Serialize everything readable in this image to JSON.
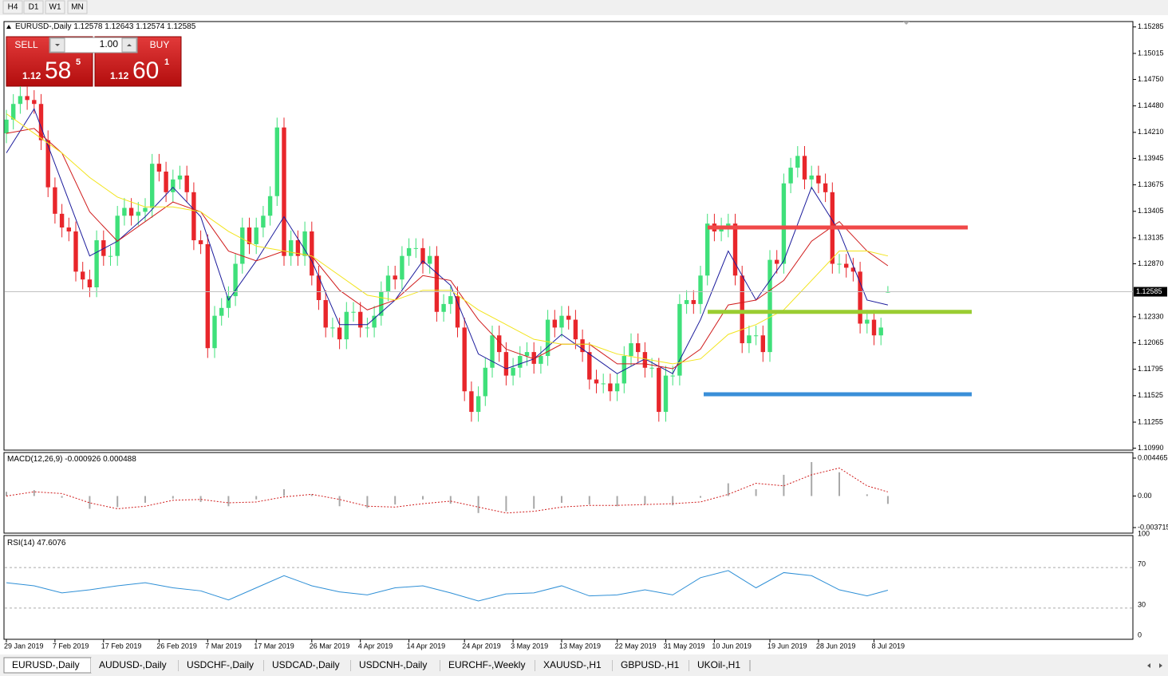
{
  "toolbar": {
    "timeframes": [
      "H4",
      "D1",
      "W1",
      "MN"
    ]
  },
  "trade_panel": {
    "sell_label": "SELL",
    "buy_label": "BUY",
    "lot": "1.00",
    "sell_price": {
      "prefix": "1.12",
      "big": "58",
      "small": "5"
    },
    "buy_price": {
      "prefix": "1.12",
      "big": "60",
      "small": "1"
    }
  },
  "chart_data": [
    {
      "type": "candlestick",
      "symbol": "EURUSD-,Daily",
      "categories": [
        "29 Jan 2019",
        null,
        null,
        null,
        null,
        null,
        null,
        "7 Feb 2019",
        null,
        null,
        null,
        null,
        null,
        null,
        "17 Feb 2019",
        null,
        null,
        null,
        null,
        null,
        null,
        null,
        "26 Feb 2019",
        null,
        null,
        null,
        null,
        null,
        null,
        "7 Mar 2019",
        null,
        null,
        null,
        null,
        null,
        null,
        "17 Mar 2019",
        null,
        null,
        null,
        null,
        null,
        null,
        null,
        "26 Mar 2019",
        null,
        null,
        null,
        null,
        null,
        null,
        "4 Apr 2019",
        null,
        null,
        null,
        null,
        null,
        null,
        "14 Apr 2019",
        null,
        null,
        null,
        null,
        null,
        null,
        null,
        "24 Apr 2019",
        null,
        null,
        null,
        null,
        null,
        null,
        "3 May 2019",
        null,
        null,
        null,
        null,
        null,
        null,
        "13 May 2019",
        null,
        null,
        null,
        null,
        null,
        null,
        null,
        "22 May 2019",
        null,
        null,
        null,
        null,
        null,
        null,
        "31 May 2019",
        null,
        null,
        null,
        null,
        null,
        null,
        "10 Jun 2019",
        null,
        null,
        null,
        null,
        null,
        null,
        null,
        "19 Jun 2019",
        null,
        null,
        null,
        null,
        null,
        null,
        "28 Jun 2019",
        null,
        null,
        null,
        null,
        null,
        null,
        null,
        "8 Jul 2019",
        null,
        null
      ],
      "open": [
        1.142,
        1.1434,
        1.145,
        1.1458,
        1.1454,
        1.145,
        1.1413,
        1.1365,
        1.1338,
        1.1324,
        1.132,
        1.1279,
        1.1271,
        1.1263,
        1.1311,
        1.1295,
        1.1295,
        1.1336,
        1.1344,
        1.1336,
        1.134,
        1.1344,
        1.1389,
        1.1381,
        1.136,
        1.1373,
        1.1377,
        1.136,
        1.1311,
        1.1307,
        1.1201,
        1.1234,
        1.1242,
        1.1254,
        1.1287,
        1.1324,
        1.1307,
        1.1324,
        1.1336,
        1.1356,
        1.1426,
        1.1295,
        1.1311,
        1.1295,
        1.132,
        1.1275,
        1.125,
        1.1222,
        1.1222,
        1.121,
        1.1238,
        1.1238,
        1.1222,
        1.1222,
        1.1234,
        1.1259,
        1.1275,
        1.1271,
        1.1295,
        1.1303,
        1.1303,
        1.1287,
        1.1295,
        1.1238,
        1.1246,
        1.1254,
        1.1222,
        1.1157,
        1.1136,
        1.1152,
        1.1181,
        1.1214,
        1.1197,
        1.1173,
        1.1181,
        1.1193,
        1.1197,
        1.1185,
        1.1193,
        1.123,
        1.1222,
        1.1234,
        1.123,
        1.121,
        1.1197,
        1.1169,
        1.1165,
        1.1165,
        1.1157,
        1.1165,
        1.1193,
        1.1206,
        1.1197,
        1.1181,
        1.1181,
        1.1136,
        1.1173,
        1.1173,
        1.1246,
        1.125,
        1.1246,
        1.1275,
        1.1328,
        1.132,
        1.1324,
        1.1328,
        1.1275,
        1.1206,
        1.1214,
        1.1214,
        1.1197,
        1.1291,
        1.1287,
        1.1369,
        1.1385,
        1.1397,
        1.1373,
        1.1377,
        1.1369,
        1.136,
        1.1287,
        1.1287,
        1.1283,
        1.1279,
        1.1226,
        1.123,
        1.1214,
        1.12578
      ],
      "high": [
        1.1444,
        1.146,
        1.1468,
        1.1468,
        1.1464,
        1.146,
        1.1423,
        1.1375,
        1.1348,
        1.1334,
        1.133,
        1.1289,
        1.1281,
        1.1321,
        1.1321,
        1.1305,
        1.1346,
        1.1354,
        1.1354,
        1.135,
        1.1354,
        1.1399,
        1.1399,
        1.1391,
        1.1383,
        1.1387,
        1.1387,
        1.137,
        1.1321,
        1.1317,
        1.1244,
        1.1252,
        1.1264,
        1.1297,
        1.1334,
        1.1334,
        1.1334,
        1.1346,
        1.1366,
        1.1436,
        1.1436,
        1.1321,
        1.1321,
        1.133,
        1.133,
        1.1285,
        1.126,
        1.1232,
        1.1232,
        1.1248,
        1.1248,
        1.1248,
        1.1232,
        1.1244,
        1.1269,
        1.1285,
        1.1285,
        1.1305,
        1.1313,
        1.1313,
        1.1313,
        1.1305,
        1.1305,
        1.1256,
        1.1264,
        1.1264,
        1.1232,
        1.1167,
        1.1162,
        1.1191,
        1.1224,
        1.1224,
        1.1207,
        1.1191,
        1.1203,
        1.1207,
        1.1207,
        1.1203,
        1.124,
        1.124,
        1.1244,
        1.1244,
        1.124,
        1.122,
        1.1207,
        1.1179,
        1.1175,
        1.1175,
        1.1175,
        1.1203,
        1.1216,
        1.1216,
        1.1207,
        1.1191,
        1.1191,
        1.1183,
        1.1183,
        1.1256,
        1.126,
        1.126,
        1.1285,
        1.1338,
        1.1338,
        1.1334,
        1.1338,
        1.1338,
        1.1285,
        1.1224,
        1.1224,
        1.1224,
        1.1301,
        1.1301,
        1.1379,
        1.1395,
        1.1407,
        1.1407,
        1.1387,
        1.1387,
        1.1379,
        1.137,
        1.1297,
        1.1297,
        1.1293,
        1.1289,
        1.124,
        1.124,
        1.1232,
        1.12643
      ],
      "low": [
        1.141,
        1.1424,
        1.144,
        1.1444,
        1.144,
        1.1403,
        1.1355,
        1.1328,
        1.1314,
        1.131,
        1.1269,
        1.1261,
        1.1253,
        1.1253,
        1.1285,
        1.1285,
        1.1285,
        1.1326,
        1.1326,
        1.1326,
        1.133,
        1.1334,
        1.1371,
        1.135,
        1.135,
        1.1363,
        1.135,
        1.1301,
        1.1297,
        1.1191,
        1.1191,
        1.1224,
        1.1232,
        1.1244,
        1.1277,
        1.1297,
        1.1297,
        1.1314,
        1.1326,
        1.1346,
        1.1285,
        1.1285,
        1.1285,
        1.1285,
        1.1265,
        1.124,
        1.1212,
        1.1212,
        1.12,
        1.12,
        1.1228,
        1.1212,
        1.1212,
        1.1212,
        1.1224,
        1.1249,
        1.1261,
        1.1261,
        1.1285,
        1.1293,
        1.1277,
        1.1277,
        1.1228,
        1.1228,
        1.1236,
        1.1212,
        1.1147,
        1.1126,
        1.1126,
        1.1142,
        1.1171,
        1.1187,
        1.1163,
        1.1163,
        1.1171,
        1.1183,
        1.1175,
        1.1175,
        1.1183,
        1.1212,
        1.1212,
        1.122,
        1.12,
        1.1187,
        1.1159,
        1.1155,
        1.1155,
        1.1147,
        1.1147,
        1.1155,
        1.1183,
        1.1187,
        1.1171,
        1.1171,
        1.1126,
        1.1126,
        1.1163,
        1.1163,
        1.1236,
        1.1236,
        1.1236,
        1.1265,
        1.131,
        1.131,
        1.1314,
        1.1265,
        1.1196,
        1.1196,
        1.1204,
        1.1187,
        1.1187,
        1.1277,
        1.1277,
        1.1359,
        1.1375,
        1.1363,
        1.1363,
        1.1359,
        1.135,
        1.1277,
        1.1277,
        1.1273,
        1.1269,
        1.1216,
        1.1216,
        1.1204,
        1.1204,
        1.12574
      ],
      "close": [
        1.1434,
        1.145,
        1.1458,
        1.1454,
        1.145,
        1.1413,
        1.1365,
        1.1338,
        1.1324,
        1.132,
        1.1279,
        1.1271,
        1.1263,
        1.1311,
        1.1295,
        1.1295,
        1.1336,
        1.1344,
        1.1336,
        1.134,
        1.1344,
        1.1389,
        1.1381,
        1.136,
        1.1373,
        1.1377,
        1.136,
        1.1311,
        1.1307,
        1.1201,
        1.1234,
        1.1242,
        1.1254,
        1.1287,
        1.1324,
        1.1307,
        1.1324,
        1.1336,
        1.1356,
        1.1426,
        1.1295,
        1.1311,
        1.1295,
        1.132,
        1.1275,
        1.125,
        1.1222,
        1.1222,
        1.121,
        1.1238,
        1.1238,
        1.1222,
        1.1222,
        1.1234,
        1.1259,
        1.1275,
        1.1271,
        1.1295,
        1.1303,
        1.1303,
        1.1287,
        1.1295,
        1.1238,
        1.1246,
        1.1254,
        1.1222,
        1.1157,
        1.1136,
        1.1152,
        1.1181,
        1.1214,
        1.1197,
        1.1173,
        1.1181,
        1.1193,
        1.1197,
        1.1185,
        1.1193,
        1.123,
        1.1222,
        1.1234,
        1.123,
        1.121,
        1.1197,
        1.1169,
        1.1165,
        1.1165,
        1.1157,
        1.1165,
        1.1193,
        1.1206,
        1.1197,
        1.1181,
        1.1181,
        1.1136,
        1.1173,
        1.1173,
        1.1246,
        1.125,
        1.1246,
        1.1275,
        1.1328,
        1.132,
        1.1324,
        1.1328,
        1.1275,
        1.1206,
        1.1214,
        1.1214,
        1.1197,
        1.1291,
        1.1287,
        1.1369,
        1.1385,
        1.1397,
        1.1373,
        1.1377,
        1.1369,
        1.136,
        1.1287,
        1.1287,
        1.1283,
        1.1279,
        1.1226,
        1.123,
        1.1214,
        1.1222,
        1.12585
      ],
      "up_color": "#3fe07a",
      "down_color": "#e8262b",
      "ylim": [
        1.1097,
        1.1534
      ],
      "yticks": [
        1.15285,
        1.15015,
        {
          "value": 1.1475,
          "label": "1.14750"
        },
        {
          "value": 1.1448,
          "label": "1.14480"
        },
        {
          "value": 1.1421,
          "label": "1.14210"
        },
        1.13945,
        1.13675,
        1.13405,
        1.13135,
        {
          "value": 1.1287,
          "label": "1.12870"
        },
        {
          "value": 1.1233,
          "label": "1.12330"
        },
        1.12065,
        1.11795,
        1.11525,
        1.11255,
        {
          "value": 1.1099,
          "label": "1.10990"
        }
      ],
      "bid": 1.12585,
      "moving_averages": [
        {
          "color": "#1c1c9c",
          "x": [
            0,
            4,
            8,
            12,
            16,
            20,
            24,
            28,
            32,
            36,
            40,
            44,
            48,
            52,
            56,
            60,
            64,
            68,
            72,
            76,
            80,
            84,
            88,
            92,
            96,
            100,
            104,
            108,
            112,
            116,
            120,
            124,
            127
          ],
          "values": [
            1.14,
            1.1445,
            1.137,
            1.1295,
            1.131,
            1.1335,
            1.1365,
            1.1335,
            1.125,
            1.129,
            1.1335,
            1.129,
            1.1225,
            1.1225,
            1.125,
            1.129,
            1.1265,
            1.1195,
            1.118,
            1.119,
            1.1215,
            1.1195,
            1.1175,
            1.119,
            1.1175,
            1.123,
            1.13,
            1.125,
            1.129,
            1.1365,
            1.132,
            1.125,
            1.1245
          ]
        },
        {
          "color": "#d01c1c",
          "x": [
            0,
            4,
            8,
            12,
            16,
            20,
            24,
            28,
            32,
            36,
            40,
            44,
            48,
            52,
            56,
            60,
            64,
            68,
            72,
            76,
            80,
            84,
            88,
            92,
            96,
            100,
            104,
            108,
            112,
            116,
            120,
            124,
            127
          ],
          "values": [
            1.142,
            1.1425,
            1.14,
            1.134,
            1.131,
            1.133,
            1.135,
            1.134,
            1.13,
            1.129,
            1.13,
            1.1295,
            1.126,
            1.124,
            1.125,
            1.1275,
            1.127,
            1.123,
            1.12,
            1.119,
            1.1205,
            1.1205,
            1.1185,
            1.1185,
            1.118,
            1.12,
            1.1245,
            1.125,
            1.127,
            1.131,
            1.133,
            1.13,
            1.1285
          ]
        },
        {
          "color": "#f2e41c",
          "x": [
            0,
            4,
            8,
            12,
            16,
            20,
            24,
            28,
            32,
            36,
            40,
            44,
            48,
            52,
            56,
            60,
            64,
            68,
            72,
            76,
            80,
            84,
            88,
            92,
            96,
            100,
            104,
            108,
            112,
            116,
            120,
            124,
            127
          ],
          "values": [
            1.144,
            1.142,
            1.14,
            1.1375,
            1.1355,
            1.1345,
            1.1345,
            1.134,
            1.132,
            1.1305,
            1.13,
            1.1295,
            1.1275,
            1.1255,
            1.125,
            1.126,
            1.126,
            1.124,
            1.1225,
            1.121,
            1.1205,
            1.1205,
            1.1195,
            1.119,
            1.1185,
            1.119,
            1.1215,
            1.1225,
            1.124,
            1.127,
            1.13,
            1.13,
            1.1295
          ]
        }
      ],
      "levels": [
        {
          "value": 1.1324,
          "color": "#f04848"
        },
        {
          "value": 1.1238,
          "color": "#9acd32"
        },
        {
          "value": 1.1154,
          "color": "#3a8fd8"
        }
      ]
    },
    {
      "type": "macd",
      "name": "MACD(12,26,9)",
      "x": [
        0,
        4,
        8,
        12,
        16,
        20,
        24,
        28,
        32,
        36,
        40,
        44,
        48,
        52,
        56,
        60,
        64,
        68,
        72,
        76,
        80,
        84,
        88,
        92,
        96,
        100,
        104,
        108,
        112,
        116,
        120,
        124,
        127
      ],
      "histogram": [
        0.0005,
        0.0007,
        -0.0002,
        -0.0015,
        -0.0013,
        -0.0008,
        -0.0003,
        -0.0007,
        -0.0012,
        -0.0004,
        0.0008,
        0.0002,
        -0.0012,
        -0.0014,
        -0.001,
        -0.0004,
        -0.0009,
        -0.002,
        -0.0018,
        -0.0015,
        -0.0008,
        -0.001,
        -0.0012,
        -0.001,
        -0.0011,
        -0.0002,
        0.0015,
        0.0008,
        0.0025,
        0.004,
        0.0028,
        0.0002,
        -0.000926
      ],
      "signal": [
        0.0,
        0.0005,
        0.0003,
        -0.0008,
        -0.0015,
        -0.0012,
        -0.0005,
        -0.0004,
        -0.0008,
        -0.0007,
        -0.0001,
        0.0002,
        -0.0004,
        -0.0012,
        -0.0013,
        -0.0009,
        -0.0006,
        -0.0013,
        -0.002,
        -0.0018,
        -0.0013,
        -0.0011,
        -0.0011,
        -0.001,
        -0.0009,
        -0.0007,
        0.0002,
        0.0015,
        0.0012,
        0.0025,
        0.0033,
        0.0012,
        0.000488
      ],
      "histogram_color": "#a8a8a8",
      "signal_color": "#d01c1c",
      "ylim": [
        -0.00437,
        0.00503
      ],
      "yticks": [
        0.004465,
        {
          "value": 0,
          "label": "0.00"
        },
        -0.003715
      ]
    },
    {
      "type": "rsi",
      "name": "RSI(14)",
      "x": [
        0,
        4,
        8,
        12,
        16,
        20,
        24,
        28,
        32,
        36,
        40,
        44,
        48,
        52,
        56,
        60,
        64,
        68,
        72,
        76,
        80,
        84,
        88,
        92,
        96,
        100,
        104,
        108,
        112,
        116,
        120,
        124,
        127
      ],
      "values": [
        55,
        52,
        45,
        48,
        52,
        55,
        50,
        47,
        38,
        50,
        62,
        52,
        46,
        43,
        50,
        52,
        45,
        37,
        44,
        45,
        52,
        42,
        43,
        48,
        43,
        60,
        67,
        50,
        65,
        62,
        48,
        42,
        47.6076
      ],
      "color": "#2e8fd6",
      "ylim": [
        0,
        100
      ],
      "yticks": [
        100,
        70,
        30,
        0
      ]
    }
  ],
  "tabs": [
    "EURUSD-,Daily",
    "AUDUSD-,Daily",
    "USDCHF-,Daily",
    "USDCAD-,Daily",
    "USDCNH-,Daily",
    "EURCHF-,Weekly",
    "XAUUSD-,H1",
    "GBPUSD-,H1",
    "UKOil-,H1"
  ]
}
